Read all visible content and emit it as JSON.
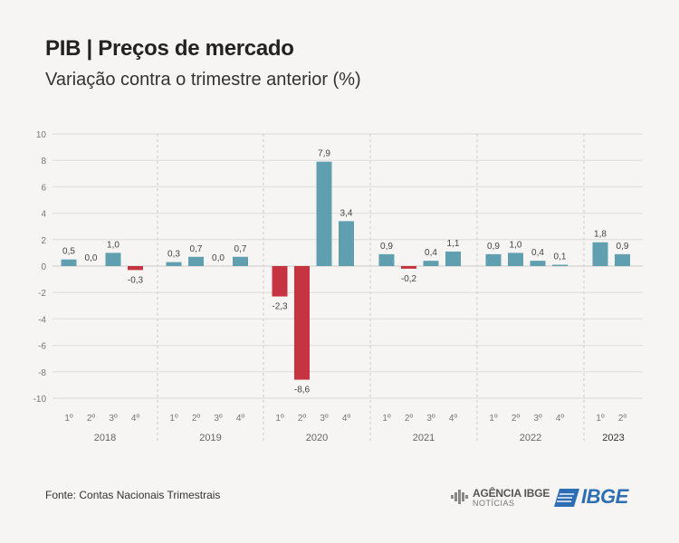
{
  "header": {
    "title": "PIB | Preços de mercado",
    "subtitle": "Variação contra o trimestre anterior (%)"
  },
  "footer": {
    "source": "Fonte: Contas Nacionais Trimestrais",
    "agencia_top": "AGÊNCIA IBGE",
    "agencia_bottom": "NOTÍCIAS",
    "ibge_logo_text": "IBGE"
  },
  "colors": {
    "positive": "#5f9fb0",
    "negative": "#c63341",
    "grid": "#dedcd8",
    "tick_text": "#777777",
    "value_text": "#444444",
    "year_text": "#666666",
    "year_highlight": "#333333",
    "ibge_blue": "#2d6eb5"
  },
  "chart_data": {
    "type": "bar",
    "title": "PIB | Preços de mercado",
    "subtitle": "Variação contra o trimestre anterior (%)",
    "ylim": [
      -10,
      10
    ],
    "yticks": [
      10,
      8,
      6,
      4,
      2,
      0,
      -2,
      -4,
      -6,
      -8,
      -10
    ],
    "grid": true,
    "groups": [
      {
        "year": "2018",
        "quarters": [
          "1º",
          "2º",
          "3º",
          "4º"
        ],
        "values": [
          0.5,
          0.0,
          1.0,
          -0.3
        ],
        "labels": [
          "0,5",
          "0,0",
          "1,0",
          "-0,3"
        ]
      },
      {
        "year": "2019",
        "quarters": [
          "1º",
          "2º",
          "3º",
          "4º"
        ],
        "values": [
          0.3,
          0.7,
          0.0,
          0.7
        ],
        "labels": [
          "0,3",
          "0,7",
          "0,0",
          "0,7"
        ]
      },
      {
        "year": "2020",
        "quarters": [
          "1º",
          "2º",
          "3º",
          "4º"
        ],
        "values": [
          -2.3,
          -8.6,
          7.9,
          3.4
        ],
        "labels": [
          "-2,3",
          "-8,6",
          "7,9",
          "3,4"
        ]
      },
      {
        "year": "2021",
        "quarters": [
          "1º",
          "2º",
          "3º",
          "4º"
        ],
        "values": [
          0.9,
          -0.2,
          0.4,
          1.1
        ],
        "labels": [
          "0,9",
          "-0,2",
          "0,4",
          "1,1"
        ]
      },
      {
        "year": "2022",
        "quarters": [
          "1º",
          "2º",
          "3º",
          "4º"
        ],
        "values": [
          0.9,
          1.0,
          0.4,
          0.1
        ],
        "labels": [
          "0,9",
          "1,0",
          "0,4",
          "0,1"
        ]
      },
      {
        "year": "2023",
        "quarters": [
          "1º",
          "2º"
        ],
        "values": [
          1.8,
          0.9
        ],
        "labels": [
          "1,8",
          "0,9"
        ]
      }
    ]
  }
}
